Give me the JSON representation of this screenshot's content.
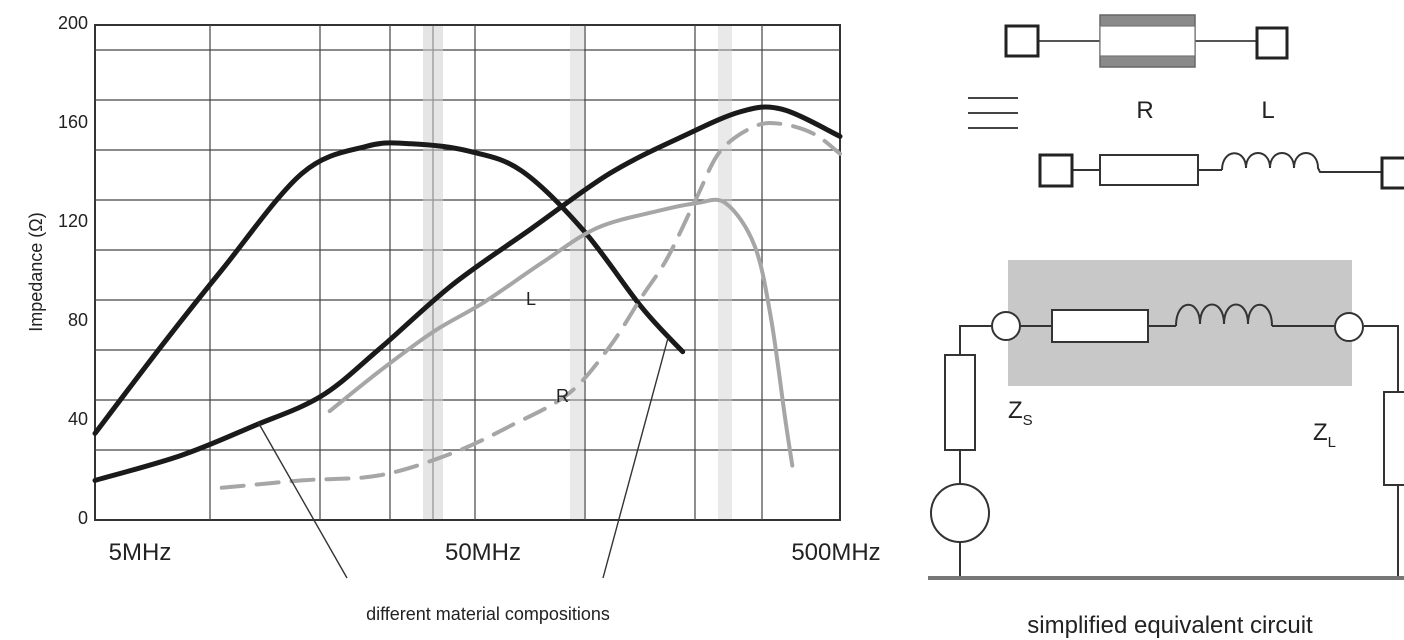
{
  "chart_data": {
    "type": "line",
    "title": "",
    "xlabel": "",
    "ylabel": "Impedance (Ω)",
    "x_scale": "log",
    "x_range_mhz": [
      3.3,
      600
    ],
    "ylim": [
      0,
      200
    ],
    "grid": true,
    "x_tick_labels": [
      "5MHz",
      "50MHz",
      "500MHz"
    ],
    "y_ticks": [
      0,
      40,
      80,
      120,
      160,
      200
    ],
    "annotations": {
      "L": "L",
      "R": "R"
    },
    "caption": "different material compositions",
    "series": [
      {
        "style": "solid-black",
        "points": [
          [
            3.3,
            35
          ],
          [
            5.3,
            71
          ],
          [
            8,
            101
          ],
          [
            14,
            140
          ],
          [
            22,
            151
          ],
          [
            30,
            152
          ],
          [
            45,
            149
          ],
          [
            65,
            141
          ],
          [
            100,
            117
          ],
          [
            150,
            86
          ],
          [
            200,
            68
          ]
        ]
      },
      {
        "style": "solid-black",
        "points": [
          [
            3.3,
            16
          ],
          [
            6,
            26
          ],
          [
            10,
            38
          ],
          [
            16,
            50
          ],
          [
            24,
            69
          ],
          [
            40,
            95
          ],
          [
            70,
            118
          ],
          [
            120,
            140
          ],
          [
            200,
            155
          ],
          [
            300,
            165
          ],
          [
            400,
            166
          ],
          [
            600,
            155
          ]
        ]
      },
      {
        "style": "solid-gray",
        "points": [
          [
            17,
            44
          ],
          [
            24,
            60
          ],
          [
            35,
            76
          ],
          [
            50,
            88
          ],
          [
            75,
            104
          ],
          [
            110,
            118
          ],
          [
            170,
            125
          ],
          [
            220,
            128
          ],
          [
            270,
            128
          ],
          [
            330,
            111
          ],
          [
            370,
            82
          ],
          [
            410,
            40
          ],
          [
            430,
            22
          ]
        ]
      },
      {
        "style": "dashed-gray",
        "points": [
          [
            8,
            13
          ],
          [
            14,
            16
          ],
          [
            24,
            18
          ],
          [
            40,
            27
          ],
          [
            60,
            38
          ],
          [
            90,
            51
          ],
          [
            120,
            70
          ],
          [
            150,
            90
          ],
          [
            180,
            106
          ],
          [
            220,
            130
          ],
          [
            260,
            149
          ],
          [
            330,
            159
          ],
          [
            400,
            160
          ],
          [
            500,
            156
          ],
          [
            600,
            148
          ]
        ]
      }
    ]
  },
  "circuit": {
    "r_label": "R",
    "l_label": "L",
    "zs_main": "Z",
    "zs_sub": "S",
    "zl_main": "Z",
    "zl_sub": "L",
    "caption": "simplified equivalent circuit"
  }
}
